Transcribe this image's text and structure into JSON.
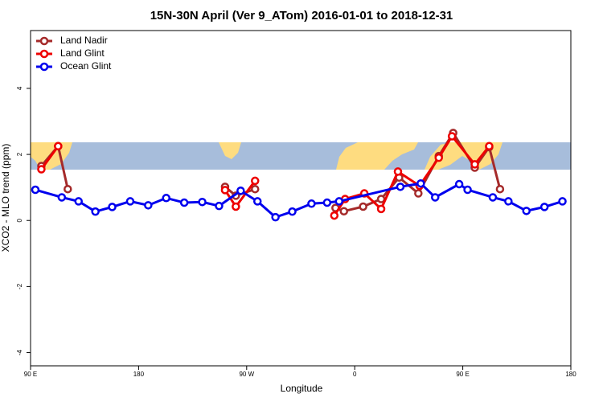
{
  "chart_data": {
    "type": "line",
    "title": "15N-30N April (Ver 9_ATom)   2016-01-01 to 2018-12-31",
    "x_label": "Longitude",
    "y_label": "XCO2 - MLO trend (ppm)",
    "xlim": [
      90,
      540
    ],
    "ylim": [
      -4.4,
      5.75
    ],
    "xticks": [
      {
        "value": 90,
        "label": "90 E"
      },
      180,
      {
        "value": 270,
        "label": "90 W"
      },
      {
        "value": 360,
        "label": "0"
      },
      {
        "value": 450,
        "label": "90 E"
      },
      {
        "value": 540,
        "label": "180"
      }
    ],
    "yticks": [
      -4,
      -2,
      0,
      2,
      4
    ],
    "legend": "top-left",
    "series": [
      {
        "name": "Land Nadir",
        "color": "#a52a2a",
        "x": [
          99,
          113,
          121,
          null,
          252,
          261,
          277,
          null,
          344,
          351,
          367,
          382,
          397,
          413,
          430,
          442,
          460,
          472,
          481
        ],
        "values": [
          1.65,
          2.25,
          0.95,
          null,
          1.02,
          0.75,
          0.95,
          null,
          0.38,
          0.28,
          0.42,
          0.65,
          1.3,
          0.82,
          1.95,
          2.65,
          1.6,
          2.22,
          0.95
        ]
      },
      {
        "name": "Land Glint",
        "color": "#ee0000",
        "x": [
          99,
          113,
          null,
          252,
          261,
          277,
          null,
          343,
          352,
          368,
          382,
          396,
          414,
          430,
          441,
          460,
          472
        ],
        "values": [
          1.55,
          2.25,
          null,
          0.92,
          0.42,
          1.2,
          null,
          0.15,
          0.65,
          0.82,
          0.35,
          1.48,
          1.05,
          1.9,
          2.55,
          1.7,
          2.25
        ]
      },
      {
        "name": "Ocean Glint",
        "color": "#0000ee",
        "x": [
          94,
          116,
          130,
          144,
          158,
          173,
          188,
          203,
          218,
          233,
          247,
          265,
          279,
          294,
          308,
          324,
          337,
          347,
          398,
          415,
          427,
          447,
          454,
          475,
          488,
          503,
          518,
          533
        ],
        "values": [
          0.93,
          0.7,
          0.58,
          0.27,
          0.41,
          0.58,
          0.46,
          0.68,
          0.54,
          0.56,
          0.44,
          0.9,
          0.58,
          0.1,
          0.27,
          0.51,
          0.54,
          0.58,
          1.02,
          1.12,
          0.7,
          1.1,
          0.93,
          0.7,
          0.58,
          0.29,
          0.41,
          0.58
        ]
      }
    ]
  }
}
